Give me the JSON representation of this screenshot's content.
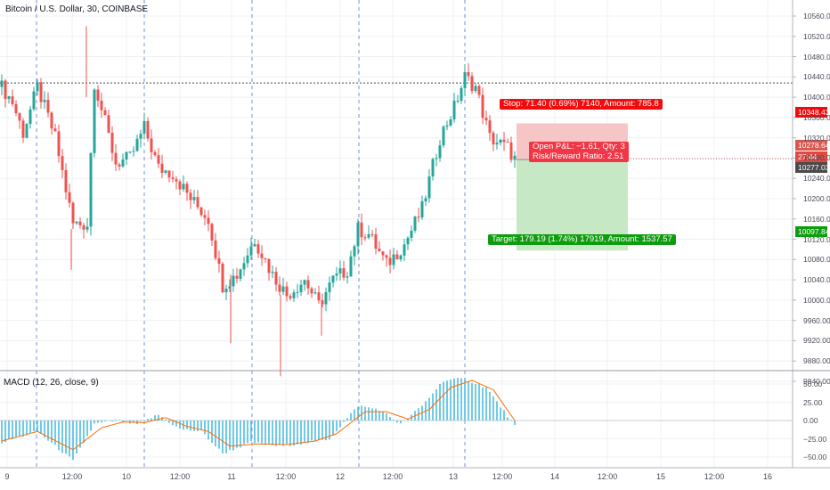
{
  "header": {
    "symbol_title": "Bitcoin / U.S. Dollar, 30, COINBASE"
  },
  "indicator": {
    "label": "MACD (12, 26, close, 9)"
  },
  "trade": {
    "stop_label": "Stop: 71.40 (0.69%) 7140, Amount: 785.8",
    "pnl_line1": "Open P&L: −1.61, Qty: 3",
    "pnl_line2": "Risk/Reward Ratio: 2.51",
    "target_label": "Target: 179.19 (1.74%) 17919, Amount: 1537.57"
  },
  "price_tags": {
    "stop": "10348.43",
    "current": "10278.64",
    "countdown": "27:44",
    "entry": "10277.03",
    "target": "10097.84"
  },
  "colors": {
    "up": "#26a69a",
    "down": "#ef5350",
    "stop_zone": "#f6c5c5",
    "target_zone": "#c7e8c4",
    "stop_tag": "#f00c0c",
    "target_tag": "#0f9d10",
    "current_tag": "#d8584f",
    "countdown_tag": "#e04a40",
    "entry_tag": "#4a4a4a",
    "macd_line": "#2196f3",
    "signal_line": "#ff6d00",
    "histogram": "#4dbce0",
    "session_line": "#7a90d0"
  },
  "chart_data": [
    {
      "type": "candlestick",
      "title": "Bitcoin / U.S. Dollar, 30, COINBASE",
      "y_ticks": [
        9840,
        9880,
        9920,
        9960,
        10000,
        10040,
        10080,
        10120,
        10160,
        10200,
        10240,
        10280,
        10320,
        10360,
        10400,
        10440,
        10480,
        10520,
        10560
      ],
      "ylim": [
        9820,
        10570
      ],
      "x_ticks": [
        "9",
        "12:00",
        "10",
        "12:00",
        "11",
        "12:00",
        "12",
        "12:00",
        "13",
        "12:00",
        "14",
        "12:00",
        "15",
        "12:00",
        "16"
      ],
      "horizontal_line": 10428,
      "price_path": [
        {
          "x": 0,
          "price": 10420
        },
        {
          "x": 3,
          "price": 10390
        },
        {
          "x": 6,
          "price": 10330
        },
        {
          "x": 10,
          "price": 10420
        },
        {
          "x": 15,
          "price": 10320
        },
        {
          "x": 20,
          "price": 10150
        },
        {
          "x": 24,
          "price": 10150
        },
        {
          "x": 26,
          "price": 10430
        },
        {
          "x": 32,
          "price": 10270
        },
        {
          "x": 36,
          "price": 10280
        },
        {
          "x": 40,
          "price": 10340
        },
        {
          "x": 44,
          "price": 10260
        },
        {
          "x": 48,
          "price": 10250
        },
        {
          "x": 53,
          "price": 10200
        },
        {
          "x": 58,
          "price": 10160
        },
        {
          "x": 62,
          "price": 10030
        },
        {
          "x": 66,
          "price": 10050
        },
        {
          "x": 71,
          "price": 10120
        },
        {
          "x": 76,
          "price": 10050
        },
        {
          "x": 80,
          "price": 10010
        },
        {
          "x": 85,
          "price": 10040
        },
        {
          "x": 89,
          "price": 9990
        },
        {
          "x": 93,
          "price": 10040
        },
        {
          "x": 97,
          "price": 10060
        },
        {
          "x": 100,
          "price": 10140
        },
        {
          "x": 103,
          "price": 10130
        },
        {
          "x": 108,
          "price": 10070
        },
        {
          "x": 113,
          "price": 10110
        },
        {
          "x": 118,
          "price": 10180
        },
        {
          "x": 123,
          "price": 10320
        },
        {
          "x": 127,
          "price": 10380
        },
        {
          "x": 130,
          "price": 10440
        },
        {
          "x": 133,
          "price": 10420
        },
        {
          "x": 137,
          "price": 10320
        },
        {
          "x": 142,
          "price": 10300
        },
        {
          "x": 144,
          "price": 10278
        }
      ],
      "wick_extremes": {
        "high": 10540,
        "low": 9850
      }
    },
    {
      "type": "histogram+line",
      "title": "MACD (12, 26, close, 9)",
      "y_ticks": [
        50,
        25,
        0,
        -25,
        -50
      ],
      "ylim": [
        -65,
        65
      ],
      "series": [
        {
          "name": "MACD",
          "path": [
            {
              "x": 0,
              "v": -30
            },
            {
              "x": 10,
              "v": -15
            },
            {
              "x": 20,
              "v": -55
            },
            {
              "x": 26,
              "v": -5
            },
            {
              "x": 32,
              "v": 0
            },
            {
              "x": 38,
              "v": -5
            },
            {
              "x": 44,
              "v": 8
            },
            {
              "x": 50,
              "v": -12
            },
            {
              "x": 56,
              "v": -15
            },
            {
              "x": 62,
              "v": -45
            },
            {
              "x": 70,
              "v": -30
            },
            {
              "x": 78,
              "v": -35
            },
            {
              "x": 86,
              "v": -30
            },
            {
              "x": 92,
              "v": -25
            },
            {
              "x": 100,
              "v": 20
            },
            {
              "x": 106,
              "v": 15
            },
            {
              "x": 112,
              "v": -5
            },
            {
              "x": 118,
              "v": 20
            },
            {
              "x": 124,
              "v": 55
            },
            {
              "x": 130,
              "v": 57
            },
            {
              "x": 136,
              "v": 45
            },
            {
              "x": 144,
              "v": -7
            }
          ]
        },
        {
          "name": "Signal",
          "path": [
            {
              "x": 0,
              "v": -28
            },
            {
              "x": 10,
              "v": -15
            },
            {
              "x": 20,
              "v": -40
            },
            {
              "x": 28,
              "v": -10
            },
            {
              "x": 34,
              "v": -2
            },
            {
              "x": 40,
              "v": -3
            },
            {
              "x": 46,
              "v": 4
            },
            {
              "x": 52,
              "v": -8
            },
            {
              "x": 58,
              "v": -15
            },
            {
              "x": 64,
              "v": -35
            },
            {
              "x": 72,
              "v": -32
            },
            {
              "x": 80,
              "v": -33
            },
            {
              "x": 88,
              "v": -28
            },
            {
              "x": 94,
              "v": -18
            },
            {
              "x": 102,
              "v": 12
            },
            {
              "x": 108,
              "v": 12
            },
            {
              "x": 114,
              "v": 2
            },
            {
              "x": 120,
              "v": 15
            },
            {
              "x": 126,
              "v": 45
            },
            {
              "x": 132,
              "v": 55
            },
            {
              "x": 138,
              "v": 42
            },
            {
              "x": 144,
              "v": 0
            }
          ]
        }
      ]
    }
  ]
}
